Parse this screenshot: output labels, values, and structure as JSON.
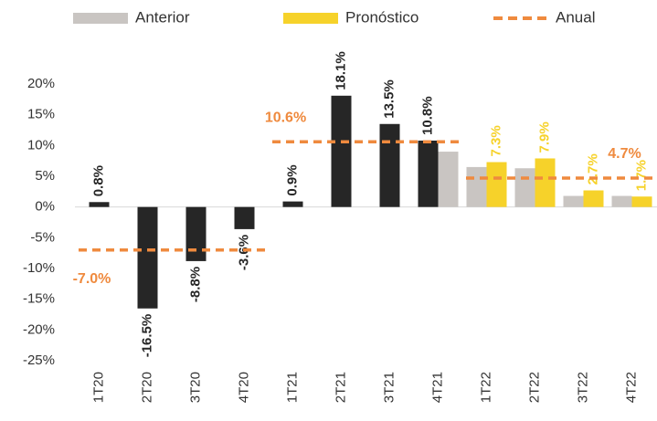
{
  "chart_data": {
    "type": "bar",
    "categories": [
      "1T20",
      "2T20",
      "3T20",
      "4T20",
      "1T21",
      "2T21",
      "3T21",
      "4T21",
      "1T22",
      "2T22",
      "3T22",
      "4T22"
    ],
    "series": [
      {
        "color": "#262626",
        "values": [
          0.8,
          -16.5,
          -8.8,
          -3.6,
          0.9,
          18.1,
          13.5,
          10.8,
          null,
          null,
          null,
          null
        ],
        "value_labels": [
          "0.8%",
          "-16.5%",
          "-8.8%",
          "-3.6%",
          "0.9%",
          "18.1%",
          "13.5%",
          "10.8%",
          null,
          null,
          null,
          null
        ]
      },
      {
        "name": "Anterior",
        "color": "#c9c5c2",
        "values": [
          null,
          null,
          null,
          null,
          null,
          null,
          null,
          9.0,
          6.5,
          6.3,
          1.8,
          1.8
        ]
      },
      {
        "name": "Pronóstico",
        "color": "#f6d22a",
        "values": [
          null,
          null,
          null,
          null,
          null,
          null,
          null,
          null,
          7.3,
          7.9,
          2.7,
          1.7
        ],
        "value_labels": [
          null,
          null,
          null,
          null,
          null,
          null,
          null,
          null,
          "7.3%",
          "7.9%",
          "2.7%",
          "1.7%"
        ]
      },
      {
        "name": "Anual",
        "type": "line",
        "color": "#ef8a3e",
        "dashed": true,
        "values": [
          -7.0,
          -7.0,
          -7.0,
          -7.0,
          10.6,
          10.6,
          10.6,
          10.6,
          4.7,
          4.7,
          4.7,
          4.7
        ],
        "value_labels": [
          "-7.0%",
          null,
          null,
          null,
          "10.6%",
          null,
          null,
          null,
          null,
          null,
          null,
          "4.7%"
        ]
      }
    ],
    "ylim": [
      -25,
      20
    ],
    "yticks": [
      {
        "value": 20,
        "label": "20%"
      },
      {
        "value": 15,
        "label": "15%"
      },
      {
        "value": 10,
        "label": "10%"
      },
      {
        "value": 5,
        "label": "5%"
      },
      {
        "value": 0,
        "label": "0%"
      },
      {
        "value": -5,
        "label": "-5%"
      },
      {
        "value": -10,
        "label": "-10%"
      },
      {
        "value": -15,
        "label": "-15%"
      },
      {
        "value": -20,
        "label": "-20%"
      },
      {
        "value": -25,
        "label": "-25%"
      }
    ]
  }
}
